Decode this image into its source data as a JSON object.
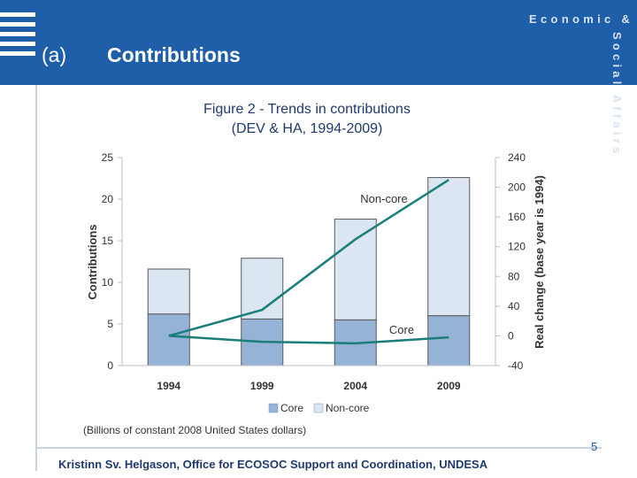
{
  "slide": {
    "section_label": "(a)",
    "section_title": "Contributions",
    "brand_horizontal": "Economic &",
    "brand_vertical": "Social Affairs",
    "page_number": "5",
    "footer": "Kristinn Sv. Helgason, Office for ECOSOC Support and Coordination, UNDESA",
    "colors": {
      "header": "#1f5ea8",
      "core": "#95b3d7",
      "noncore": "#dce6f2",
      "line": "#1a7f7a"
    }
  },
  "chart_data": {
    "type": "bar",
    "stacked": true,
    "title": "Figure 2 - Trends in contributions",
    "subtitle": "(DEV & HA, 1994-2009)",
    "categories": [
      "1994",
      "1999",
      "2004",
      "2009"
    ],
    "series": [
      {
        "name": "Core",
        "values": [
          6.2,
          5.6,
          5.5,
          6.0
        ]
      },
      {
        "name": "Non-core",
        "values": [
          5.4,
          7.3,
          12.1,
          16.6
        ]
      }
    ],
    "line_series": [
      {
        "name": "Non-core",
        "axis": "right",
        "values": [
          0,
          35,
          130,
          210
        ]
      },
      {
        "name": "Core",
        "axis": "right",
        "values": [
          0,
          -8,
          -10,
          -2
        ]
      }
    ],
    "line_labels": {
      "noncore": "Non-core",
      "core": "Core"
    },
    "ylabel": "Contributions",
    "ylim": [
      0,
      25
    ],
    "yticks": [
      "0",
      "5",
      "10",
      "15",
      "20",
      "25"
    ],
    "y2label": "Real change (base year is 1994)",
    "y2lim": [
      -40,
      240
    ],
    "y2ticks": [
      "-40",
      "0",
      "40",
      "80",
      "120",
      "160",
      "200",
      "240"
    ],
    "legend": [
      {
        "label": "Core"
      },
      {
        "label": "Non-core"
      }
    ],
    "note": "(Billions of constant 2008 United States dollars)"
  }
}
